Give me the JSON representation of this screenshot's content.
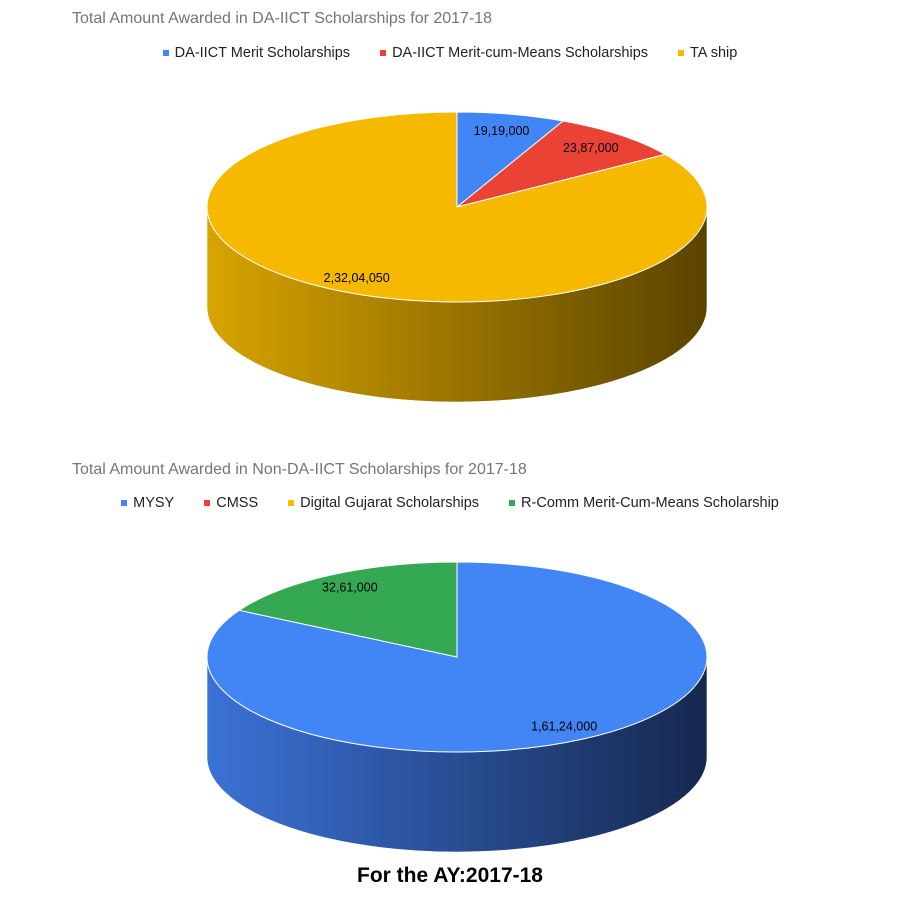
{
  "chart_data": [
    {
      "type": "pie",
      "title": "Total Amount Awarded in DA-IICT Scholarships for 2017-18",
      "legend_position": "top",
      "three_d": true,
      "labels": [
        "DA-IICT Merit Scholarships",
        "DA-IICT Merit-cum-Means Scholarships",
        "TA ship"
      ],
      "values": [
        1919000,
        2387000,
        23204050
      ],
      "data_labels": [
        "19,19,000",
        "23,87,000",
        "2,32,04,050"
      ],
      "colors": [
        "#4285f4",
        "#ea4335",
        "#f6b900"
      ],
      "side_gradient": [
        "#d8a400",
        "#5a4300"
      ]
    },
    {
      "type": "pie",
      "title": "Total Amount Awarded in Non-DA-IICT Scholarships for 2017-18",
      "legend_position": "top",
      "three_d": true,
      "labels": [
        "MYSY",
        "CMSS",
        "Digital Gujarat Scholarships",
        "R-Comm Merit-Cum-Means Scholarship"
      ],
      "values": [
        16124000,
        0,
        0,
        3261000
      ],
      "data_labels": [
        "1,61,24,000",
        "",
        "",
        "32,61,000"
      ],
      "colors": [
        "#4285f4",
        "#ea4335",
        "#fbbc04",
        "#34a853"
      ],
      "side_gradient": [
        "#3b72d6",
        "#16284f"
      ]
    }
  ],
  "footer": "For the AY:2017-18"
}
